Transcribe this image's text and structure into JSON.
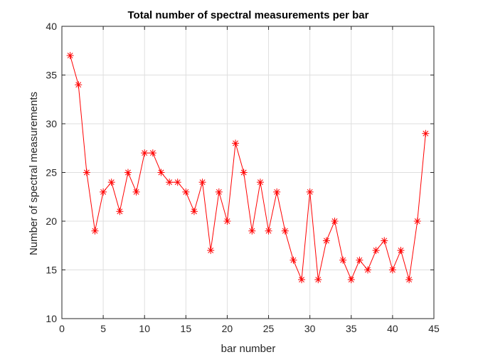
{
  "chart_data": {
    "type": "line",
    "title": "Total number of spectral measurements per bar",
    "xlabel": "bar number",
    "ylabel": "Number of spectral measurements",
    "xlim": [
      0,
      45
    ],
    "ylim": [
      10,
      40
    ],
    "xticks": [
      0,
      5,
      10,
      15,
      20,
      25,
      30,
      35,
      40,
      45
    ],
    "yticks": [
      10,
      15,
      20,
      25,
      30,
      35,
      40
    ],
    "grid": true,
    "marker": "asterisk",
    "colors": {
      "series": "#ff0000",
      "grid": "#dfdfdf",
      "axes": "#262626"
    },
    "series": [
      {
        "x": [
          1,
          2,
          3,
          4,
          5,
          6,
          7,
          8,
          9,
          10,
          11,
          12,
          13,
          14,
          15,
          16,
          17,
          18,
          19,
          20,
          21,
          22,
          23,
          24,
          25,
          26,
          27,
          28,
          29,
          30,
          31,
          32,
          33,
          34,
          35,
          36,
          37,
          38,
          39,
          40,
          41,
          42,
          43,
          44
        ],
        "values": [
          37,
          34,
          25,
          19,
          23,
          24,
          21,
          25,
          23,
          27,
          27,
          25,
          24,
          24,
          23,
          21,
          24,
          17,
          23,
          20,
          28,
          25,
          19,
          24,
          19,
          23,
          19,
          16,
          14,
          23,
          14,
          18,
          20,
          16,
          14,
          16,
          15,
          17,
          18,
          15,
          17,
          14,
          20,
          29
        ]
      }
    ]
  }
}
